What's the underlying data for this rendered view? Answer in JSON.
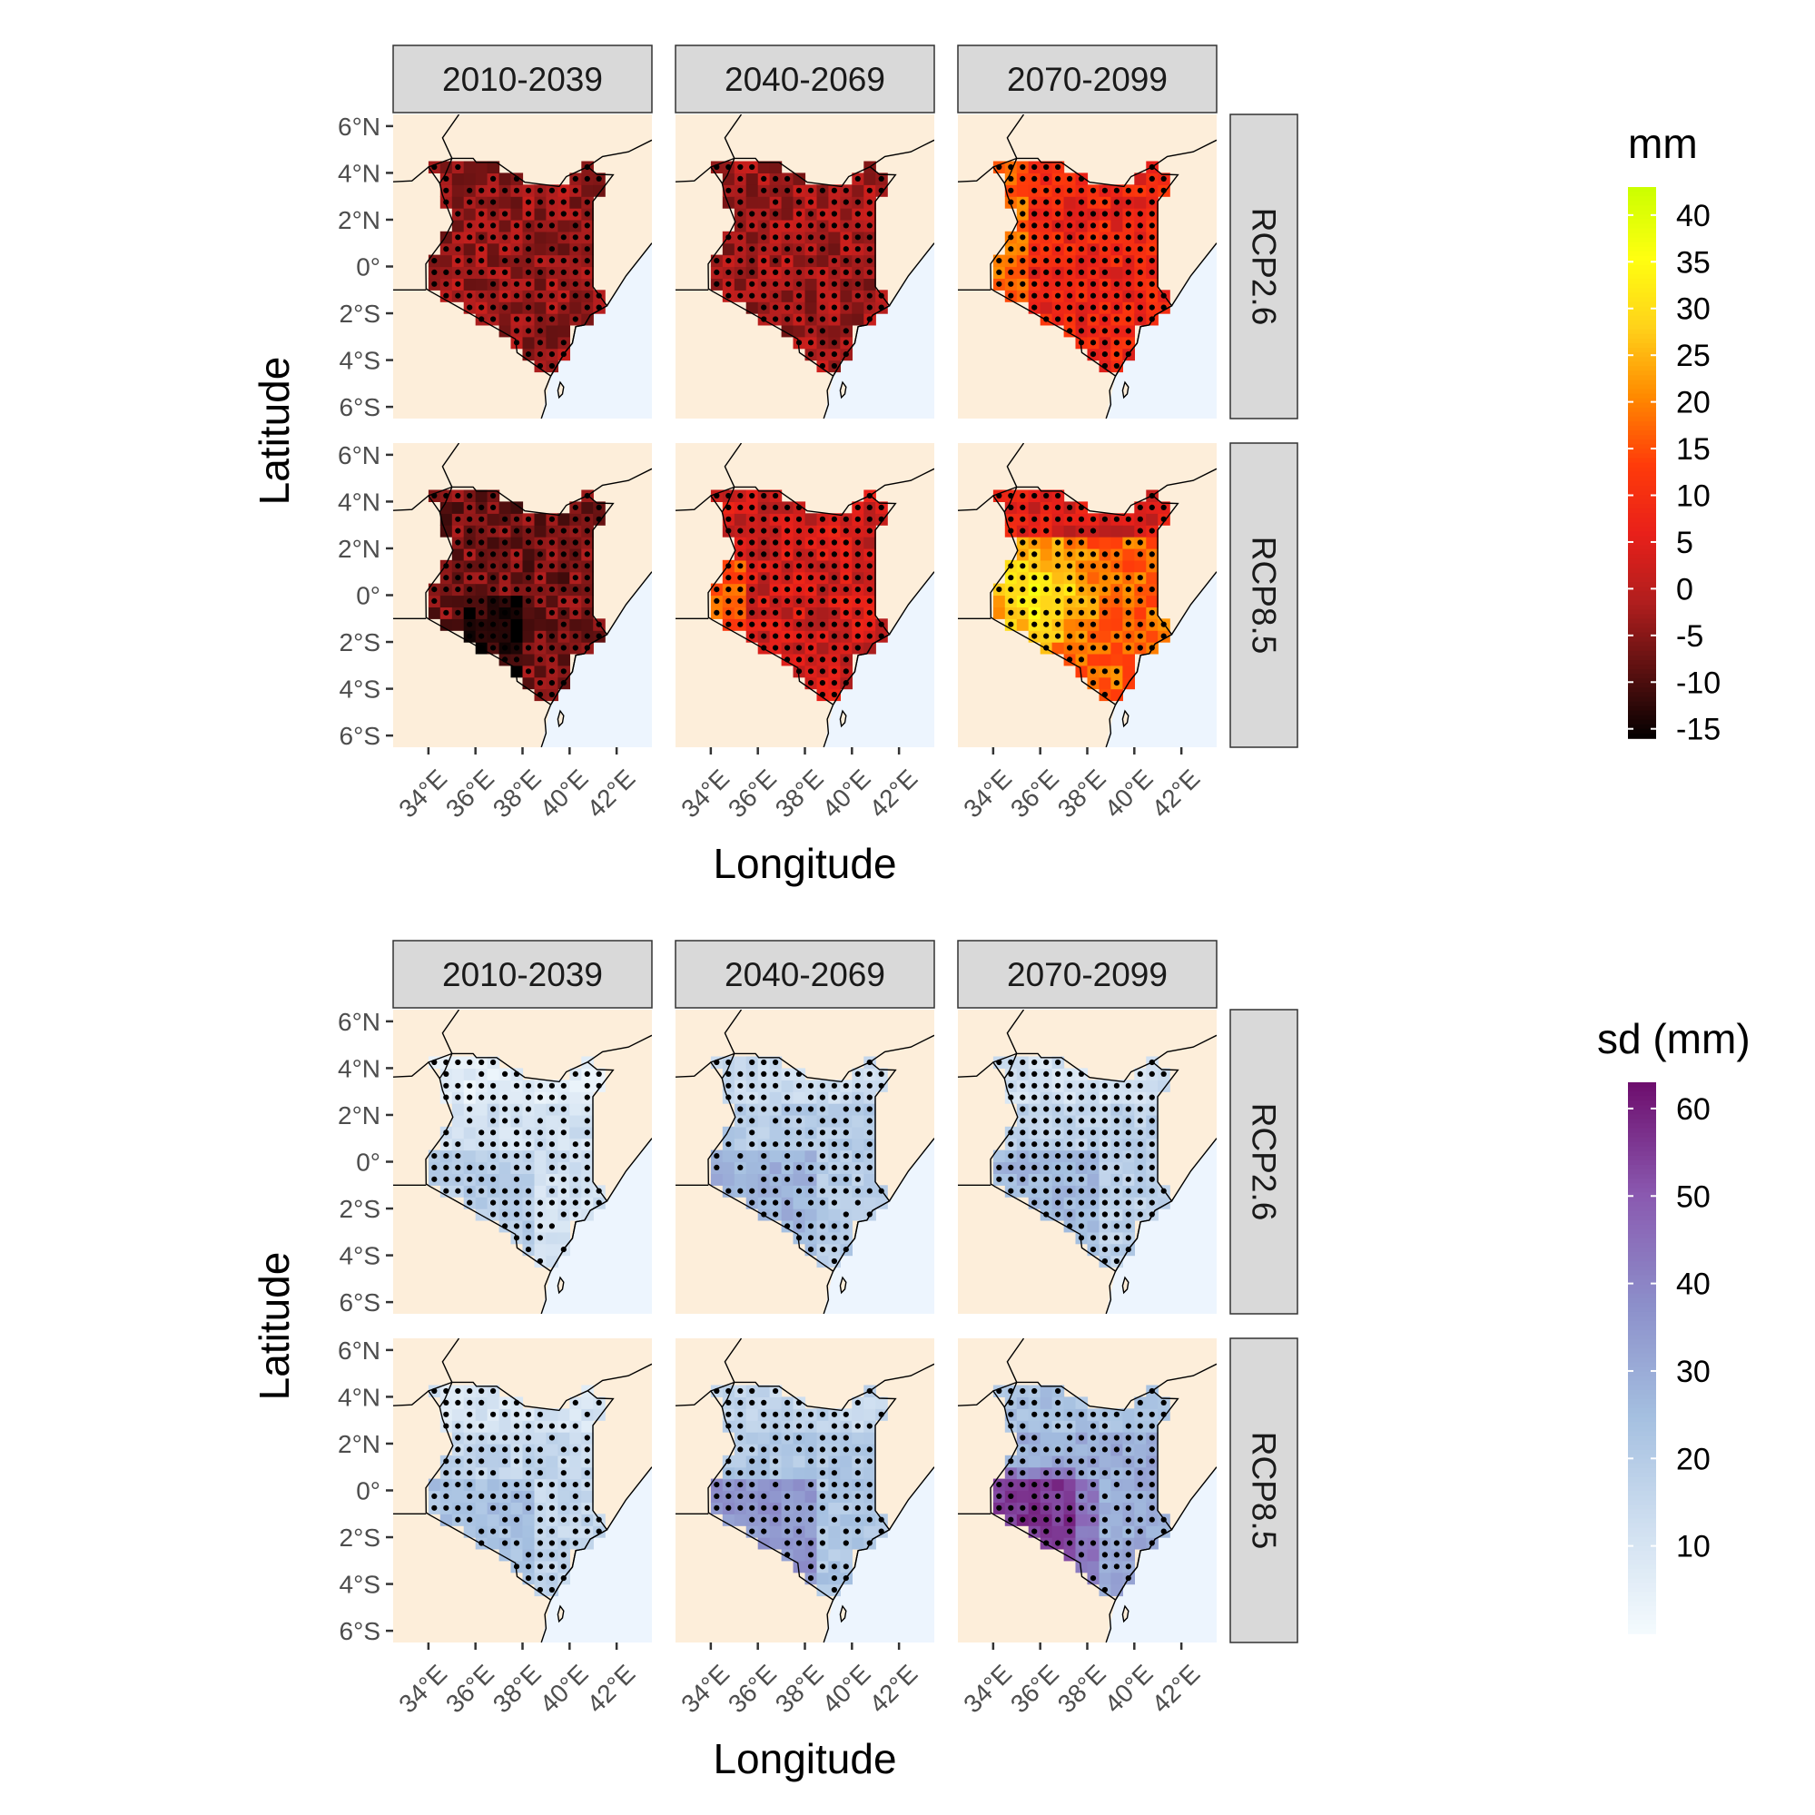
{
  "figure": {
    "type": "faceted-map-grid",
    "columns": [
      "2010-2039",
      "2040-2069",
      "2070-2099"
    ],
    "rows": [
      "RCP2.6",
      "RCP8.5"
    ],
    "xlabel": "Longitude",
    "ylabel": "Latitude",
    "lon_ticks": [
      "34°E",
      "36°E",
      "38°E",
      "40°E",
      "42°E"
    ],
    "lat_ticks": [
      "6°N",
      "4°N",
      "2°N",
      "0°",
      "2°S",
      "4°S",
      "6°S"
    ],
    "colors": {
      "land": "#fdeeda",
      "ocean": "#edf5fe",
      "strip": "#d9d9d9",
      "stipple": "#000000"
    }
  },
  "chart_data": [
    {
      "type": "heatmap",
      "title": "",
      "xlabel": "Longitude",
      "ylabel": "Latitude",
      "xlim": [
        32.5,
        43.5
      ],
      "ylim": [
        -6.5,
        6.5
      ],
      "x_ticks": [
        34,
        36,
        38,
        40,
        42
      ],
      "y_ticks": [
        6,
        4,
        2,
        0,
        -2,
        -4,
        -6
      ],
      "legend": {
        "title": "mm",
        "ticks": [
          "40",
          "35",
          "30",
          "25",
          "20",
          "15",
          "10",
          "5",
          "0",
          "-5",
          "-10",
          "-15"
        ],
        "range": [
          -16,
          43
        ],
        "palette": [
          "#000000",
          "#5a1010",
          "#b01e1e",
          "#e8201a",
          "#ff3b0a",
          "#ff8a00",
          "#ffd21a",
          "#ffff10",
          "#ccff00"
        ],
        "placement": "right"
      },
      "panels": [
        {
          "period": "2010-2039",
          "scenario": "RCP2.6",
          "mean_mm": -3,
          "stippled": "most"
        },
        {
          "period": "2040-2069",
          "scenario": "RCP2.6",
          "mean_mm": -2,
          "stippled": "most"
        },
        {
          "period": "2070-2099",
          "scenario": "RCP2.6",
          "mean_mm": 8,
          "stippled": "all"
        },
        {
          "period": "2010-2039",
          "scenario": "RCP8.5",
          "mean_mm": -6,
          "stippled": "most"
        },
        {
          "period": "2040-2069",
          "scenario": "RCP8.5",
          "mean_mm": 3,
          "stippled": "all"
        },
        {
          "period": "2070-2099",
          "scenario": "RCP8.5",
          "mean_mm": 18,
          "stippled": "most"
        }
      ]
    },
    {
      "type": "heatmap",
      "title": "",
      "xlabel": "Longitude",
      "ylabel": "Latitude",
      "xlim": [
        32.5,
        43.5
      ],
      "ylim": [
        -6.5,
        6.5
      ],
      "x_ticks": [
        34,
        36,
        38,
        40,
        42
      ],
      "y_ticks": [
        6,
        4,
        2,
        0,
        -2,
        -4,
        -6
      ],
      "legend": {
        "title": "sd (mm)",
        "ticks": [
          "60",
          "50",
          "40",
          "30",
          "20",
          "10"
        ],
        "range": [
          0,
          63
        ],
        "palette": [
          "#f5fbfe",
          "#cfdff0",
          "#a4bfe0",
          "#8c8fca",
          "#8a59b0",
          "#6e0f6e"
        ],
        "placement": "right"
      },
      "panels": [
        {
          "period": "2010-2039",
          "scenario": "RCP2.6",
          "mean_sd": 12,
          "stippled": "most"
        },
        {
          "period": "2040-2069",
          "scenario": "RCP2.6",
          "mean_sd": 20,
          "stippled": "most"
        },
        {
          "period": "2070-2099",
          "scenario": "RCP2.6",
          "mean_sd": 18,
          "stippled": "all"
        },
        {
          "period": "2010-2039",
          "scenario": "RCP8.5",
          "mean_sd": 16,
          "stippled": "most"
        },
        {
          "period": "2040-2069",
          "scenario": "RCP8.5",
          "mean_sd": 22,
          "stippled": "most"
        },
        {
          "period": "2070-2099",
          "scenario": "RCP8.5",
          "mean_sd": 30,
          "stippled": "most"
        }
      ]
    }
  ]
}
